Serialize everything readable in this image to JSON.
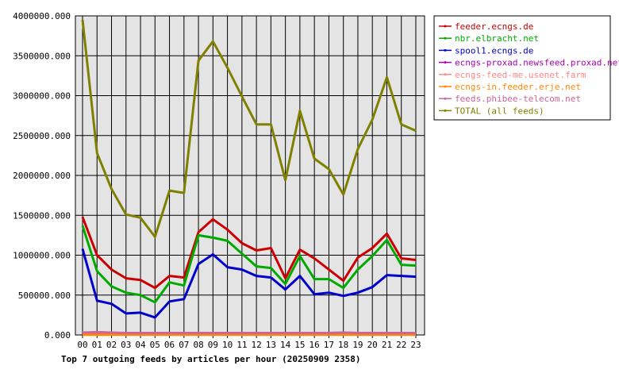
{
  "chart_data": {
    "type": "line",
    "title": "Top 7 outgoing feeds by articles per hour (20250909 2358)",
    "xlabel": "",
    "ylabel": "",
    "ylim": [
      0,
      4000000
    ],
    "y_ticks": [
      "0.000",
      "500000.000",
      "1000000.000",
      "1500000.000",
      "2000000.000",
      "2500000.000",
      "3000000.000",
      "3500000.000",
      "4000000.000"
    ],
    "categories": [
      "00",
      "01",
      "02",
      "03",
      "04",
      "05",
      "06",
      "07",
      "08",
      "09",
      "10",
      "11",
      "12",
      "13",
      "14",
      "15",
      "16",
      "17",
      "18",
      "19",
      "20",
      "21",
      "22",
      "23"
    ],
    "grid": true,
    "legend_position": "right",
    "series": [
      {
        "name": "feeder.ecngs.de",
        "color": "#cc0000",
        "values": [
          1480000,
          1000000,
          820000,
          710000,
          690000,
          590000,
          740000,
          720000,
          1290000,
          1450000,
          1320000,
          1150000,
          1060000,
          1090000,
          710000,
          1070000,
          960000,
          820000,
          680000,
          970000,
          1090000,
          1270000,
          960000,
          940000
        ]
      },
      {
        "name": "nbr.elbracht.net",
        "color": "#00aa00",
        "values": [
          1370000,
          800000,
          610000,
          530000,
          500000,
          410000,
          660000,
          620000,
          1250000,
          1220000,
          1180000,
          1020000,
          860000,
          840000,
          640000,
          990000,
          700000,
          700000,
          590000,
          820000,
          990000,
          1190000,
          880000,
          870000
        ]
      },
      {
        "name": "spool1.ecngs.de",
        "color": "#0000cc",
        "values": [
          1080000,
          430000,
          390000,
          270000,
          280000,
          220000,
          420000,
          450000,
          890000,
          1010000,
          850000,
          820000,
          740000,
          720000,
          570000,
          740000,
          510000,
          530000,
          490000,
          530000,
          600000,
          750000,
          740000,
          730000
        ]
      },
      {
        "name": "ecngs-proxad.newsfeed.proxad.net",
        "color": "#aa00aa",
        "values": [
          5000,
          5000,
          5000,
          5000,
          5000,
          5000,
          5000,
          5000,
          5000,
          5000,
          5000,
          5000,
          5000,
          5000,
          5000,
          5000,
          5000,
          5000,
          5000,
          5000,
          5000,
          5000,
          5000,
          5000
        ]
      },
      {
        "name": "ecngs-feed-me.usenet.farm",
        "color": "#ff8888",
        "values": [
          25000,
          35000,
          25000,
          25000,
          25000,
          25000,
          25000,
          25000,
          25000,
          25000,
          20000,
          25000,
          25000,
          25000,
          25000,
          25000,
          25000,
          25000,
          30000,
          25000,
          20000,
          20000,
          20000,
          20000
        ]
      },
      {
        "name": "ecngs-in.feeder.erje.net",
        "color": "#ff8800",
        "values": [
          3000,
          3000,
          3000,
          3000,
          3000,
          3000,
          3000,
          3000,
          3000,
          3000,
          3000,
          3000,
          3000,
          3000,
          3000,
          3000,
          3000,
          3000,
          3000,
          3000,
          3000,
          3000,
          3000,
          3000
        ]
      },
      {
        "name": "feeds.phibee-telecom.net",
        "color": "#cc6699",
        "values": [
          30000,
          35000,
          30000,
          25000,
          25000,
          25000,
          25000,
          25000,
          25000,
          25000,
          25000,
          25000,
          25000,
          25000,
          25000,
          25000,
          25000,
          25000,
          30000,
          25000,
          25000,
          25000,
          25000,
          25000
        ]
      },
      {
        "name": "TOTAL (all feeds)",
        "color": "#808000",
        "values": [
          3950000,
          2280000,
          1830000,
          1510000,
          1470000,
          1230000,
          1810000,
          1780000,
          3440000,
          3680000,
          3350000,
          2990000,
          2640000,
          2640000,
          1940000,
          2810000,
          2210000,
          2080000,
          1760000,
          2330000,
          2700000,
          3230000,
          2640000,
          2560000
        ]
      }
    ]
  }
}
